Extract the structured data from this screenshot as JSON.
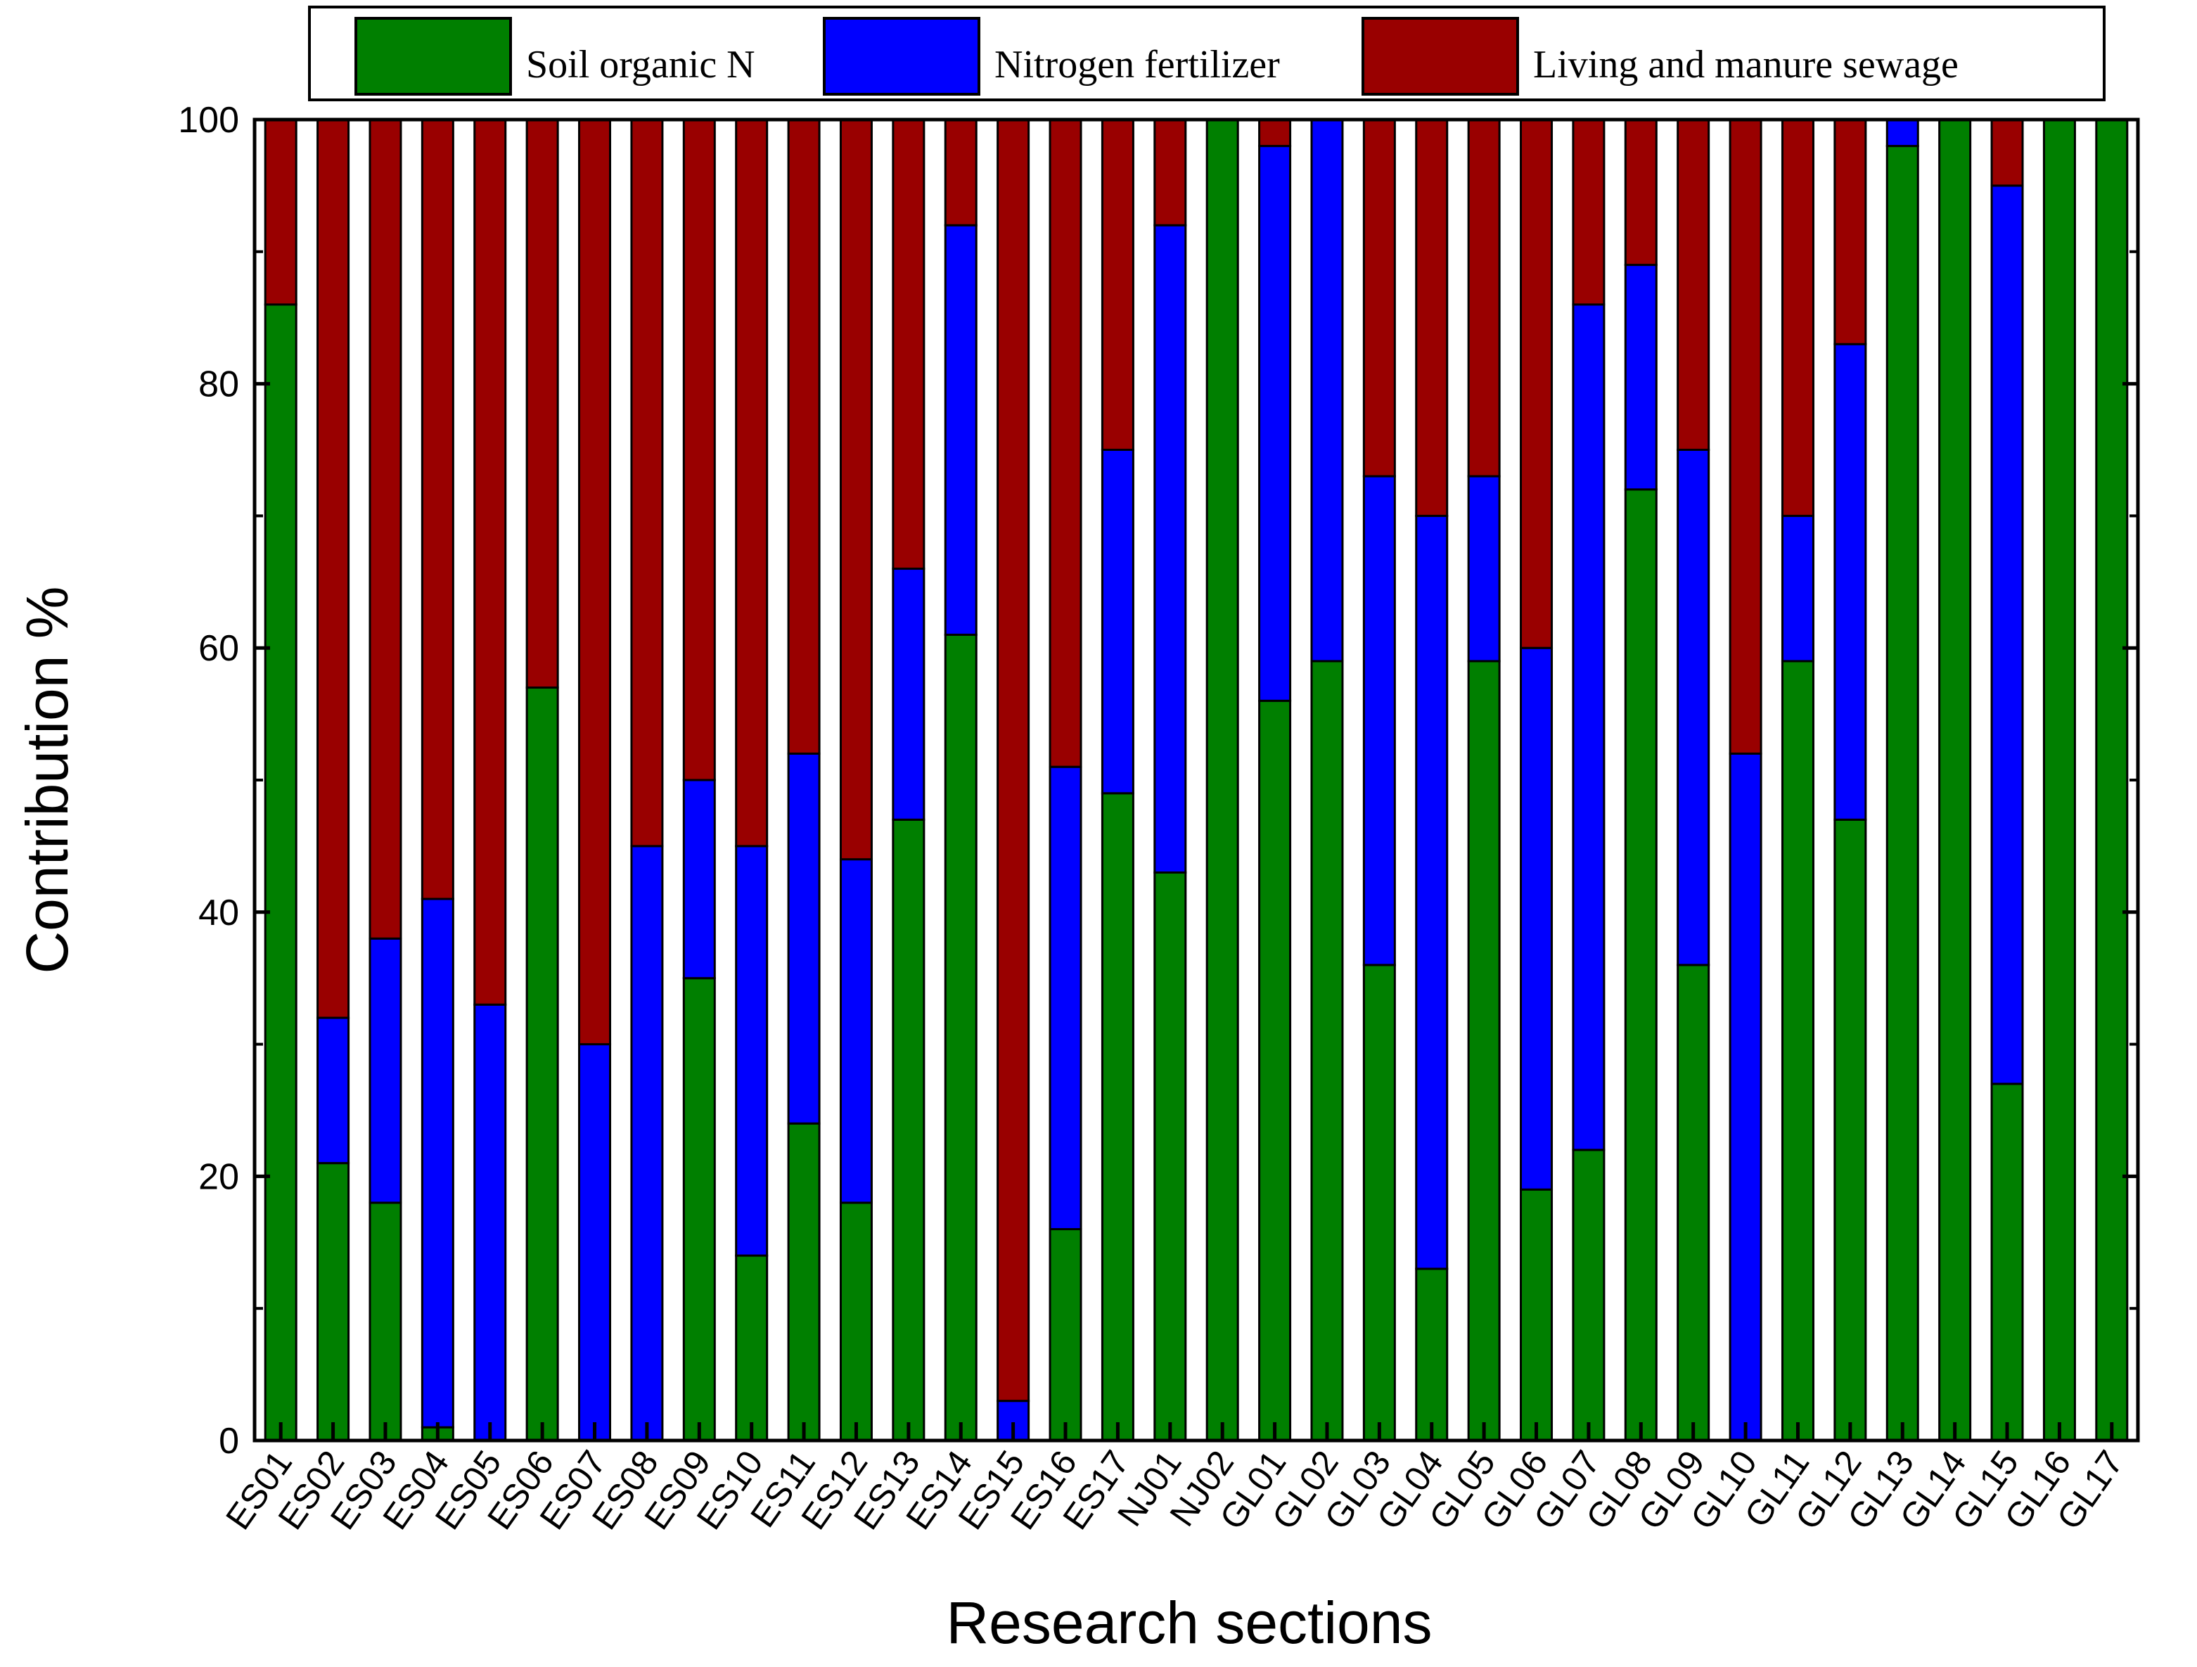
{
  "chart_data": {
    "type": "bar",
    "stacked": true,
    "title": "",
    "xlabel": "Research sections",
    "ylabel": "Contribution %",
    "ylim": [
      0,
      100
    ],
    "yticks": [
      0,
      20,
      40,
      60,
      80,
      100
    ],
    "grid": false,
    "legend_position": "top",
    "categories": [
      "ES01",
      "ES02",
      "ES03",
      "ES04",
      "ES05",
      "ES06",
      "ES07",
      "ES08",
      "ES09",
      "ES10",
      "ES11",
      "ES12",
      "ES13",
      "ES14",
      "ES15",
      "ES16",
      "ES17",
      "NJ01",
      "NJ02",
      "GL01",
      "GL02",
      "GL03",
      "GL04",
      "GL05",
      "GL06",
      "GL07",
      "GL08",
      "GL09",
      "GL10",
      "GL11",
      "GL12",
      "GL13",
      "GL14",
      "GL15",
      "GL16",
      "GL17"
    ],
    "series": [
      {
        "name": "Soil organic N",
        "color": "#007f00",
        "values": [
          86,
          21,
          18,
          1,
          0,
          57,
          0,
          0,
          35,
          14,
          24,
          18,
          47,
          61,
          0,
          16,
          49,
          43,
          100,
          56,
          59,
          36,
          13,
          59,
          19,
          22,
          72,
          36,
          0,
          59,
          47,
          98,
          100,
          27,
          100,
          100
        ]
      },
      {
        "name": "Nitrogen fertilizer",
        "color": "#0000ff",
        "values": [
          0,
          11,
          20,
          40,
          33,
          0,
          30,
          45,
          15,
          31,
          28,
          26,
          19,
          31,
          3,
          35,
          26,
          49,
          0,
          42,
          41,
          37,
          57,
          14,
          41,
          64,
          17,
          39,
          52,
          11,
          36,
          2,
          0,
          68,
          0,
          0
        ]
      },
      {
        "name": "Living and manure sewage",
        "color": "#990000",
        "values": [
          14,
          68,
          62,
          59,
          67,
          43,
          70,
          55,
          50,
          55,
          48,
          56,
          34,
          8,
          97,
          49,
          25,
          8,
          0,
          2,
          0,
          27,
          30,
          27,
          40,
          14,
          11,
          25,
          48,
          30,
          17,
          0,
          0,
          5,
          0,
          0
        ]
      }
    ]
  }
}
